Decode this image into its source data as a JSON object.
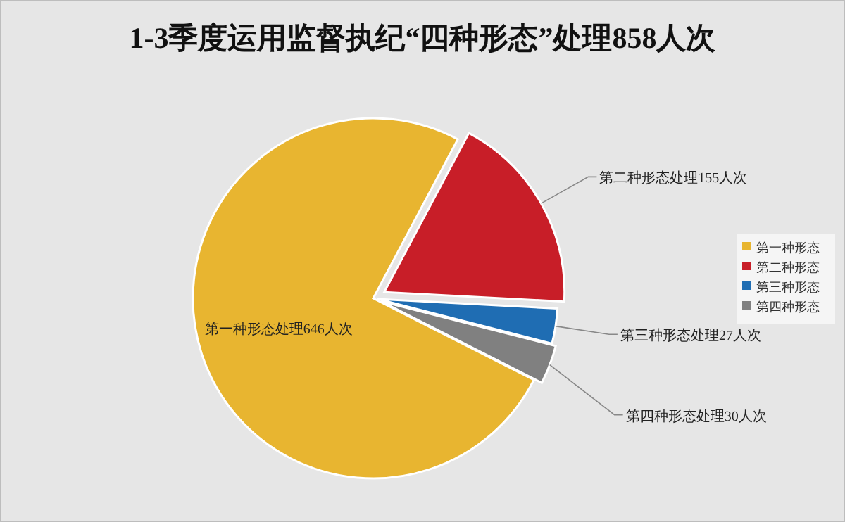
{
  "chart_data": {
    "type": "pie",
    "title": "1-3季度运用监督执纪“四种形态”处理858人次",
    "categories": [
      "第一种形态",
      "第二种形态",
      "第三种形态",
      "第四种形态"
    ],
    "values": [
      646,
      155,
      27,
      30
    ],
    "colors": [
      "#e8b530",
      "#c81e28",
      "#1f6db3",
      "#808080"
    ],
    "value_labels": [
      "第一种形态处理646人次",
      "第二种形态处理155人次",
      "第三种形态处理27人次",
      "第四种形态处理30人次"
    ],
    "legend": "right"
  }
}
